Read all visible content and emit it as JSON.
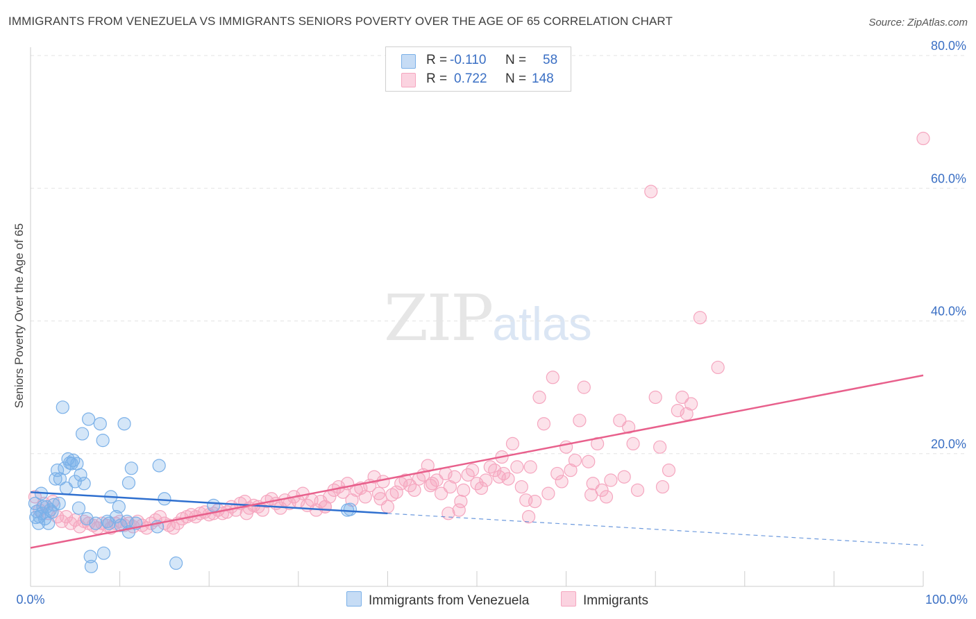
{
  "header": {
    "title": "IMMIGRANTS FROM VENEZUELA VS IMMIGRANTS SENIORS POVERTY OVER THE AGE OF 65 CORRELATION CHART",
    "source": "Source: ZipAtlas.com"
  },
  "watermark": {
    "zip": "ZIP",
    "atlas": "atlas"
  },
  "legend": {
    "rows": [
      {
        "r_label": "R =",
        "r_value": "-0.110",
        "n_label": "N =",
        "n_value": "58"
      },
      {
        "r_label": "R =",
        "r_value": "0.722",
        "n_label": "N =",
        "n_value": "148"
      }
    ]
  },
  "chart_data": {
    "type": "scatter",
    "title": "IMMIGRANTS FROM VENEZUELA VS IMMIGRANTS SENIORS POVERTY OVER THE AGE OF 65 CORRELATION CHART",
    "xlabel": "",
    "ylabel": "Seniors Poverty Over the Age of 65",
    "xlim": [
      0,
      100
    ],
    "ylim": [
      0,
      80
    ],
    "x_tick_labels": [
      "0.0%",
      "100.0%"
    ],
    "y_tick_labels": [
      "20.0%",
      "40.0%",
      "60.0%",
      "80.0%"
    ],
    "y_ticks": [
      20,
      40,
      60,
      80
    ],
    "grid": true,
    "legend_position": "bottom-center",
    "series": [
      {
        "name": "Immigrants from Venezuela",
        "color": "#7ab0e8",
        "line_color": "#2e6fcf",
        "r": -0.11,
        "n": 58,
        "trend": {
          "x0": 0,
          "y0": 14.2,
          "x1": 40,
          "y1": 11.0,
          "dash_to_x": 100,
          "dash_to_y": 6.2
        },
        "points": [
          [
            0.5,
            12.5
          ],
          [
            0.6,
            10.4
          ],
          [
            0.7,
            11.3
          ],
          [
            0.9,
            9.5
          ],
          [
            1.0,
            10.5
          ],
          [
            1.2,
            14.0
          ],
          [
            1.3,
            11.0
          ],
          [
            1.4,
            12.0
          ],
          [
            1.6,
            10.2
          ],
          [
            1.8,
            12.0
          ],
          [
            2.0,
            9.5
          ],
          [
            2.2,
            11.5
          ],
          [
            2.4,
            11.2
          ],
          [
            2.6,
            12.3
          ],
          [
            2.8,
            16.2
          ],
          [
            3.0,
            17.5
          ],
          [
            3.2,
            12.5
          ],
          [
            3.3,
            16.2
          ],
          [
            3.6,
            27.0
          ],
          [
            3.8,
            17.8
          ],
          [
            4.0,
            14.8
          ],
          [
            4.2,
            19.2
          ],
          [
            4.4,
            18.6
          ],
          [
            4.6,
            18.5
          ],
          [
            4.8,
            19.0
          ],
          [
            5.0,
            15.8
          ],
          [
            5.2,
            18.5
          ],
          [
            5.4,
            11.8
          ],
          [
            5.6,
            16.8
          ],
          [
            5.8,
            23.0
          ],
          [
            6.0,
            15.5
          ],
          [
            6.3,
            10.2
          ],
          [
            6.5,
            25.2
          ],
          [
            6.7,
            4.5
          ],
          [
            6.8,
            3.0
          ],
          [
            7.3,
            9.5
          ],
          [
            7.8,
            24.5
          ],
          [
            8.1,
            22.0
          ],
          [
            8.2,
            5.0
          ],
          [
            8.6,
            9.8
          ],
          [
            8.8,
            9.5
          ],
          [
            9.0,
            13.5
          ],
          [
            9.6,
            10.5
          ],
          [
            9.9,
            12.0
          ],
          [
            10.1,
            9.2
          ],
          [
            10.5,
            24.5
          ],
          [
            10.8,
            9.8
          ],
          [
            11.0,
            15.6
          ],
          [
            11.0,
            8.2
          ],
          [
            11.3,
            17.8
          ],
          [
            11.8,
            9.5
          ],
          [
            14.2,
            9.0
          ],
          [
            14.4,
            18.2
          ],
          [
            15.0,
            13.2
          ],
          [
            16.3,
            3.5
          ],
          [
            20.5,
            12.2
          ],
          [
            35.5,
            11.5
          ],
          [
            35.8,
            11.6
          ]
        ]
      },
      {
        "name": "Immigrants",
        "color": "#f5a6bf",
        "line_color": "#e8608c",
        "r": 0.722,
        "n": 148,
        "trend": {
          "x0": 0,
          "y0": 5.8,
          "x1": 100,
          "y1": 31.8
        },
        "points": [
          [
            0.5,
            13.5
          ],
          [
            1.0,
            11.5
          ],
          [
            1.5,
            12.5
          ],
          [
            2.0,
            11.0
          ],
          [
            2.5,
            12.8
          ],
          [
            3.0,
            10.5
          ],
          [
            3.5,
            9.8
          ],
          [
            4.0,
            10.5
          ],
          [
            4.5,
            9.5
          ],
          [
            5.0,
            10.0
          ],
          [
            5.5,
            9.0
          ],
          [
            6.0,
            9.8
          ],
          [
            6.5,
            9.5
          ],
          [
            7.0,
            9.2
          ],
          [
            7.5,
            8.8
          ],
          [
            8.0,
            9.5
          ],
          [
            8.5,
            9.2
          ],
          [
            9.0,
            8.8
          ],
          [
            9.5,
            9.5
          ],
          [
            10.0,
            9.8
          ],
          [
            10.5,
            9.2
          ],
          [
            11.0,
            9.5
          ],
          [
            11.5,
            9.0
          ],
          [
            12.0,
            9.8
          ],
          [
            12.5,
            9.2
          ],
          [
            13.0,
            8.8
          ],
          [
            13.5,
            9.5
          ],
          [
            14.0,
            10.0
          ],
          [
            14.5,
            10.5
          ],
          [
            15.0,
            9.5
          ],
          [
            15.5,
            9.2
          ],
          [
            16.0,
            8.8
          ],
          [
            16.5,
            9.5
          ],
          [
            17.0,
            10.2
          ],
          [
            17.5,
            10.5
          ],
          [
            18.0,
            10.8
          ],
          [
            18.5,
            10.5
          ],
          [
            19.0,
            11.0
          ],
          [
            19.5,
            11.2
          ],
          [
            20.0,
            10.8
          ],
          [
            20.5,
            11.0
          ],
          [
            21.0,
            11.5
          ],
          [
            21.5,
            11.0
          ],
          [
            22.0,
            11.2
          ],
          [
            22.5,
            12.0
          ],
          [
            23.0,
            11.5
          ],
          [
            23.5,
            12.5
          ],
          [
            24.0,
            12.8
          ],
          [
            24.5,
            11.8
          ],
          [
            25.0,
            12.2
          ],
          [
            25.5,
            12.0
          ],
          [
            26.0,
            11.5
          ],
          [
            26.5,
            12.8
          ],
          [
            27.0,
            13.2
          ],
          [
            27.5,
            12.5
          ],
          [
            28.0,
            11.8
          ],
          [
            28.5,
            13.0
          ],
          [
            29.0,
            12.5
          ],
          [
            29.5,
            13.5
          ],
          [
            30.0,
            12.8
          ],
          [
            30.5,
            14.0
          ],
          [
            31.0,
            12.2
          ],
          [
            31.5,
            13.0
          ],
          [
            32.0,
            11.5
          ],
          [
            32.5,
            12.8
          ],
          [
            33.0,
            12.0
          ],
          [
            33.5,
            13.5
          ],
          [
            34.0,
            14.5
          ],
          [
            34.5,
            15.0
          ],
          [
            35.0,
            14.2
          ],
          [
            35.5,
            15.5
          ],
          [
            36.0,
            13.0
          ],
          [
            36.5,
            14.5
          ],
          [
            37.0,
            14.8
          ],
          [
            37.5,
            13.5
          ],
          [
            38.0,
            15.2
          ],
          [
            38.5,
            16.5
          ],
          [
            39.0,
            14.0
          ],
          [
            39.5,
            15.8
          ],
          [
            40.0,
            12.0
          ],
          [
            40.5,
            13.8
          ],
          [
            41.0,
            14.2
          ],
          [
            41.5,
            15.5
          ],
          [
            42.0,
            16.0
          ],
          [
            42.5,
            15.2
          ],
          [
            43.0,
            14.5
          ],
          [
            43.5,
            16.2
          ],
          [
            44.0,
            16.8
          ],
          [
            44.5,
            18.2
          ],
          [
            45.0,
            15.5
          ],
          [
            45.5,
            16.0
          ],
          [
            46.0,
            14.0
          ],
          [
            46.5,
            17.0
          ],
          [
            47.0,
            15.0
          ],
          [
            47.5,
            16.5
          ],
          [
            48.0,
            11.5
          ],
          [
            48.5,
            14.5
          ],
          [
            49.0,
            16.8
          ],
          [
            49.5,
            17.5
          ],
          [
            50.0,
            15.5
          ],
          [
            50.5,
            14.8
          ],
          [
            51.0,
            16.0
          ],
          [
            51.5,
            18.0
          ],
          [
            52.0,
            17.5
          ],
          [
            52.5,
            16.5
          ],
          [
            53.0,
            17.0
          ],
          [
            53.5,
            16.2
          ],
          [
            54.0,
            21.5
          ],
          [
            54.5,
            18.0
          ],
          [
            55.0,
            15.0
          ],
          [
            55.5,
            13.0
          ],
          [
            56.0,
            18.0
          ],
          [
            56.5,
            12.8
          ],
          [
            57.0,
            28.5
          ],
          [
            57.5,
            24.5
          ],
          [
            58.0,
            14.0
          ],
          [
            58.5,
            31.5
          ],
          [
            59.0,
            17.0
          ],
          [
            59.5,
            15.8
          ],
          [
            60.0,
            21.0
          ],
          [
            60.5,
            17.5
          ],
          [
            61.0,
            19.0
          ],
          [
            61.5,
            25.0
          ],
          [
            62.0,
            30.0
          ],
          [
            62.5,
            18.8
          ],
          [
            63.0,
            15.5
          ],
          [
            63.5,
            21.5
          ],
          [
            64.0,
            14.5
          ],
          [
            64.5,
            13.5
          ],
          [
            65.0,
            16.0
          ],
          [
            66.0,
            25.0
          ],
          [
            67.0,
            24.0
          ],
          [
            67.5,
            21.5
          ],
          [
            68.0,
            14.5
          ],
          [
            69.5,
            59.5
          ],
          [
            70.0,
            28.5
          ],
          [
            70.5,
            21.0
          ],
          [
            71.5,
            17.5
          ],
          [
            72.5,
            26.5
          ],
          [
            73.0,
            28.5
          ],
          [
            73.5,
            26.0
          ],
          [
            74.0,
            27.5
          ],
          [
            75.0,
            40.5
          ],
          [
            77.0,
            33.0
          ],
          [
            62.8,
            13.8
          ],
          [
            55.8,
            10.5
          ],
          [
            46.8,
            11.0
          ],
          [
            66.5,
            16.5
          ],
          [
            52.8,
            19.5
          ],
          [
            48.2,
            12.8
          ],
          [
            70.8,
            15.0
          ],
          [
            100.0,
            67.5
          ],
          [
            24.2,
            11.0
          ],
          [
            33.0,
            12.0
          ],
          [
            39.2,
            13.2
          ],
          [
            44.8,
            15.2
          ]
        ]
      }
    ]
  }
}
